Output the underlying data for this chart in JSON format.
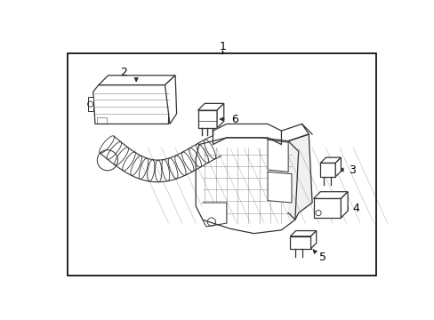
{
  "background_color": "#ffffff",
  "border_color": "#000000",
  "line_color": "#333333",
  "label_color": "#000000",
  "fig_width": 4.89,
  "fig_height": 3.6,
  "dpi": 100
}
